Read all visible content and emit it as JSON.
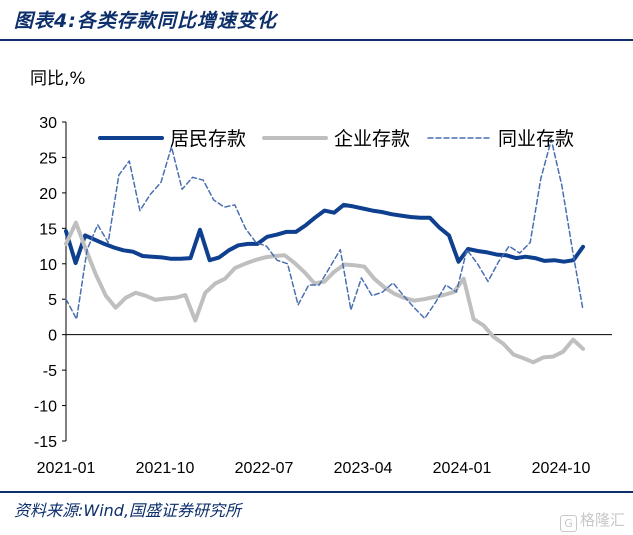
{
  "figure": {
    "title": "图表4:各类存款同比增速变化",
    "unit_label": "同比,%",
    "source": "资料来源:Wind,国盛证券研究所",
    "watermark": "格隆汇"
  },
  "colors": {
    "frame_rule": "#0d2f6b",
    "resident": "#0f3f8f",
    "enterprise": "#bfbfbf",
    "interbank": "#4a6fb0"
  },
  "chart_data": {
    "type": "line",
    "title": "",
    "xlabel": "",
    "ylabel": "同比,%",
    "ylim": [
      -15,
      30
    ],
    "yticks": [
      30,
      25,
      20,
      15,
      10,
      5,
      0,
      -5,
      -10,
      -15
    ],
    "x_tick_labels": [
      "2021-01",
      "2021-10",
      "2022-07",
      "2023-04",
      "2024-01",
      "2024-10"
    ],
    "x_tick_index": [
      0,
      9,
      18,
      27,
      36,
      45
    ],
    "legend_position": "top",
    "series": [
      {
        "name": "居民存款",
        "style": "solid-thick",
        "values": [
          14.6,
          10.1,
          14.0,
          13.4,
          12.8,
          12.3,
          11.9,
          11.7,
          11.1,
          11.0,
          10.9,
          10.7,
          10.7,
          10.8,
          14.8,
          10.5,
          10.9,
          11.9,
          12.6,
          12.8,
          12.8,
          13.8,
          14.1,
          14.5,
          14.5,
          15.4,
          16.5,
          17.5,
          17.2,
          18.3,
          18.1,
          17.8,
          17.5,
          17.3,
          17.0,
          16.8,
          16.6,
          16.5,
          16.5,
          15.1,
          14.0,
          10.3,
          12.1,
          11.8,
          11.6,
          11.3,
          11.2,
          10.8,
          11.0,
          10.8,
          10.4,
          10.5,
          10.3,
          10.5,
          12.4
        ]
      },
      {
        "name": "企业存款",
        "style": "solid-thick",
        "values": [
          12.8,
          15.8,
          12.0,
          8.5,
          5.5,
          3.8,
          5.2,
          5.9,
          5.5,
          4.9,
          5.1,
          5.2,
          5.6,
          2.0,
          5.9,
          7.2,
          7.9,
          9.4,
          10.0,
          10.5,
          10.9,
          11.1,
          11.2,
          10.1,
          8.8,
          7.2,
          7.5,
          8.9,
          9.9,
          9.8,
          9.6,
          7.9,
          6.7,
          5.8,
          5.2,
          4.8,
          5.0,
          5.3,
          5.6,
          6.0,
          7.9,
          2.2,
          1.3,
          -0.3,
          -1.3,
          -2.8,
          -3.3,
          -3.9,
          -3.2,
          -3.1,
          -2.4,
          -0.7,
          -2.0
        ]
      },
      {
        "name": "同业存款",
        "style": "dashed",
        "values": [
          5.0,
          2.2,
          12.0,
          15.5,
          13.0,
          22.5,
          24.5,
          17.5,
          19.8,
          21.5,
          26.5,
          20.5,
          22.2,
          21.8,
          19.0,
          18.0,
          18.3,
          15.0,
          13.0,
          12.5,
          10.5,
          10.0,
          4.2,
          7.0,
          7.0,
          9.5,
          12.0,
          3.5,
          8.0,
          5.5,
          6.0,
          7.3,
          5.5,
          3.8,
          2.3,
          4.5,
          7.0,
          6.0,
          12.0,
          10.0,
          7.5,
          10.3,
          12.5,
          11.5,
          13.0,
          22.0,
          27.5,
          21.0,
          12.0,
          3.5
        ]
      }
    ]
  }
}
